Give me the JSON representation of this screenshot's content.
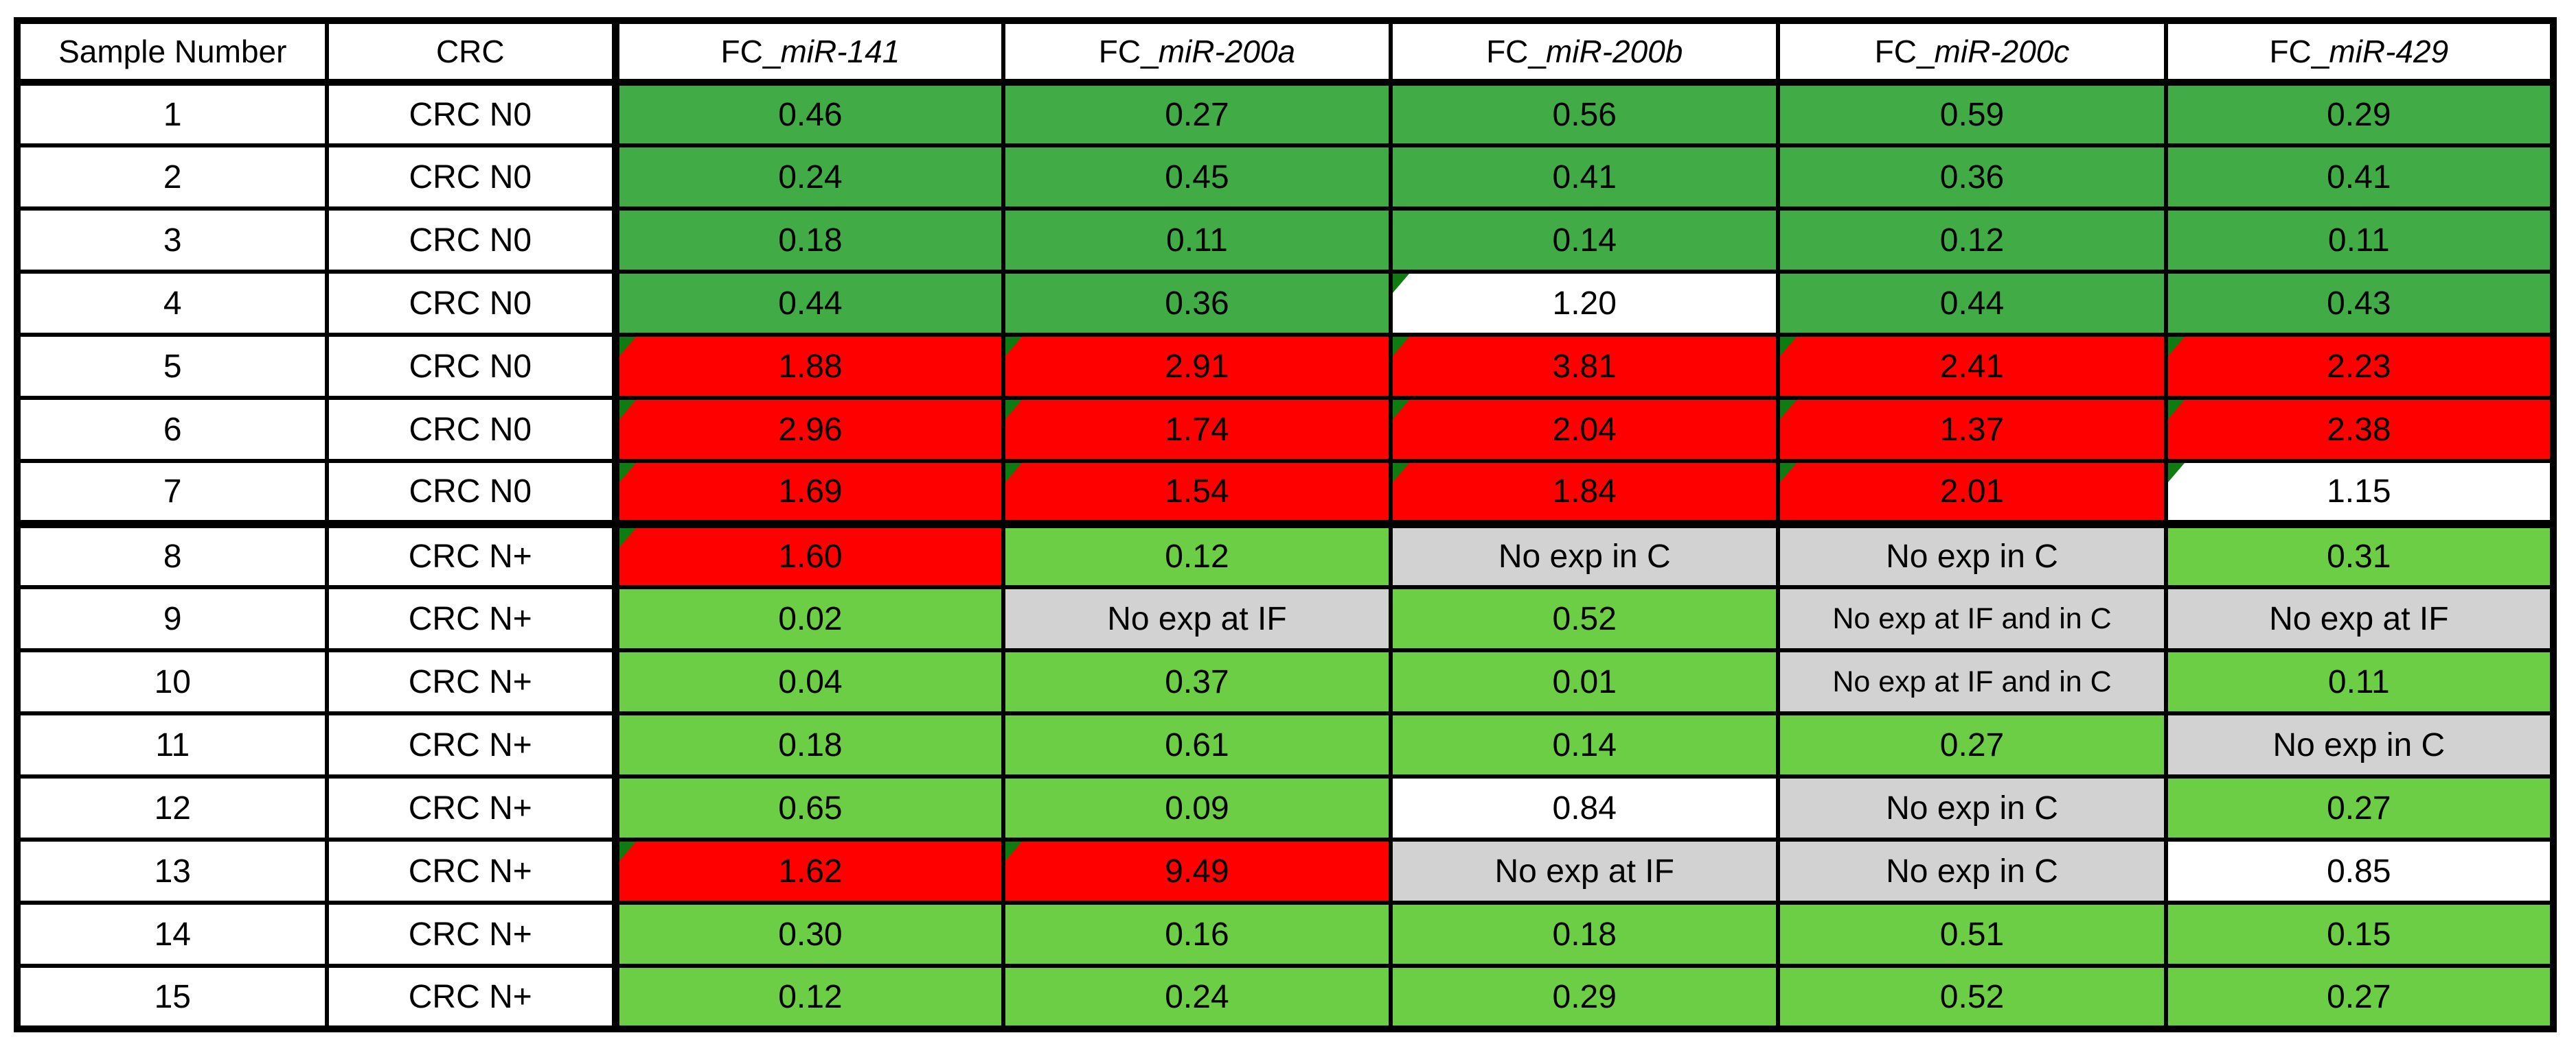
{
  "colors": {
    "fills": {
      "dg": "#41AB45",
      "lg": "#6CCE44",
      "rd": "#FF0000",
      "gy": "#D2D2D2",
      "wh": "#FFFFFF"
    },
    "fill_legend": {
      "dg": "strong decrease green",
      "lg": "decrease light green",
      "rd": "increase red",
      "gy": "no expression gray",
      "wh": "near-unity white"
    },
    "corner_wedge_green": "#0E7C10",
    "border_black": "#000000",
    "text_black": "#000000"
  },
  "chart_data": {
    "type": "table",
    "title": "",
    "headers": [
      {
        "text": "Sample Number",
        "italic": ""
      },
      {
        "text": "CRC",
        "italic": ""
      },
      {
        "text": "FC_",
        "italic": "miR-141"
      },
      {
        "text": "FC_",
        "italic": "miR-200a"
      },
      {
        "text": "FC_",
        "italic": "miR-200b"
      },
      {
        "text": "FC_",
        "italic": "miR-200c"
      },
      {
        "text": "FC_",
        "italic": "miR-429"
      }
    ],
    "rows": [
      {
        "sample": "1",
        "crc": "CRC N0",
        "values": [
          "0.46",
          "0.27",
          "0.56",
          "0.59",
          "0.29"
        ],
        "fills": [
          "dg",
          "dg",
          "dg",
          "dg",
          "dg"
        ],
        "wedges": [
          false,
          false,
          false,
          false,
          false
        ]
      },
      {
        "sample": "2",
        "crc": "CRC N0",
        "values": [
          "0.24",
          "0.45",
          "0.41",
          "0.36",
          "0.41"
        ],
        "fills": [
          "dg",
          "dg",
          "dg",
          "dg",
          "dg"
        ],
        "wedges": [
          false,
          false,
          false,
          false,
          false
        ]
      },
      {
        "sample": "3",
        "crc": "CRC N0",
        "values": [
          "0.18",
          "0.11",
          "0.14",
          "0.12",
          "0.11"
        ],
        "fills": [
          "dg",
          "dg",
          "dg",
          "dg",
          "dg"
        ],
        "wedges": [
          false,
          false,
          false,
          false,
          false
        ]
      },
      {
        "sample": "4",
        "crc": "CRC N0",
        "values": [
          "0.44",
          "0.36",
          "1.20",
          "0.44",
          "0.43"
        ],
        "fills": [
          "dg",
          "dg",
          "wh",
          "dg",
          "dg"
        ],
        "wedges": [
          false,
          false,
          true,
          false,
          false
        ]
      },
      {
        "sample": "5",
        "crc": "CRC N0",
        "values": [
          "1.88",
          "2.91",
          "3.81",
          "2.41",
          "2.23"
        ],
        "fills": [
          "rd",
          "rd",
          "rd",
          "rd",
          "rd"
        ],
        "wedges": [
          true,
          true,
          true,
          true,
          true
        ]
      },
      {
        "sample": "6",
        "crc": "CRC N0",
        "values": [
          "2.96",
          "1.74",
          "2.04",
          "1.37",
          "2.38"
        ],
        "fills": [
          "rd",
          "rd",
          "rd",
          "rd",
          "rd"
        ],
        "wedges": [
          true,
          true,
          true,
          true,
          true
        ]
      },
      {
        "sample": "7",
        "crc": "CRC N0",
        "values": [
          "1.69",
          "1.54",
          "1.84",
          "2.01",
          "1.15"
        ],
        "fills": [
          "rd",
          "rd",
          "rd",
          "rd",
          "wh"
        ],
        "wedges": [
          true,
          true,
          true,
          true,
          true
        ]
      },
      {
        "sample": "8",
        "crc": "CRC N+",
        "values": [
          "1.60",
          "0.12",
          "No exp in C",
          "No exp in C",
          "0.31"
        ],
        "fills": [
          "rd",
          "lg",
          "gy",
          "gy",
          "lg"
        ],
        "wedges": [
          true,
          false,
          false,
          false,
          false
        ]
      },
      {
        "sample": "9",
        "crc": "CRC N+",
        "values": [
          "0.02",
          "No exp at IF",
          "0.52",
          "No exp at IF and in C",
          "No exp at IF"
        ],
        "fills": [
          "lg",
          "gy",
          "lg",
          "gy",
          "gy"
        ],
        "wedges": [
          false,
          false,
          false,
          false,
          false
        ]
      },
      {
        "sample": "10",
        "crc": "CRC N+",
        "values": [
          "0.04",
          "0.37",
          "0.01",
          "No exp at IF and in C",
          "0.11"
        ],
        "fills": [
          "lg",
          "lg",
          "lg",
          "gy",
          "lg"
        ],
        "wedges": [
          false,
          false,
          false,
          false,
          false
        ]
      },
      {
        "sample": "11",
        "crc": "CRC N+",
        "values": [
          "0.18",
          "0.61",
          "0.14",
          "0.27",
          "No exp in C"
        ],
        "fills": [
          "lg",
          "lg",
          "lg",
          "lg",
          "gy"
        ],
        "wedges": [
          false,
          false,
          false,
          false,
          false
        ]
      },
      {
        "sample": "12",
        "crc": "CRC N+",
        "values": [
          "0.65",
          "0.09",
          "0.84",
          "No exp in C",
          "0.27"
        ],
        "fills": [
          "lg",
          "lg",
          "wh",
          "gy",
          "lg"
        ],
        "wedges": [
          false,
          false,
          false,
          false,
          false
        ]
      },
      {
        "sample": "13",
        "crc": "CRC N+",
        "values": [
          "1.62",
          "9.49",
          "No exp at IF",
          "No exp in C",
          "0.85"
        ],
        "fills": [
          "rd",
          "rd",
          "gy",
          "gy",
          "wh"
        ],
        "wedges": [
          true,
          true,
          false,
          false,
          false
        ]
      },
      {
        "sample": "14",
        "crc": "CRC N+",
        "values": [
          "0.30",
          "0.16",
          "0.18",
          "0.51",
          "0.15"
        ],
        "fills": [
          "lg",
          "lg",
          "lg",
          "lg",
          "lg"
        ],
        "wedges": [
          false,
          false,
          false,
          false,
          false
        ]
      },
      {
        "sample": "15",
        "crc": "CRC N+",
        "values": [
          "0.12",
          "0.24",
          "0.29",
          "0.52",
          "0.27"
        ],
        "fills": [
          "lg",
          "lg",
          "lg",
          "lg",
          "lg"
        ],
        "wedges": [
          false,
          false,
          false,
          false,
          false
        ]
      }
    ],
    "layout": {
      "group_separator_after_row": 7,
      "thick_vertical_border_after_column": 2
    }
  }
}
